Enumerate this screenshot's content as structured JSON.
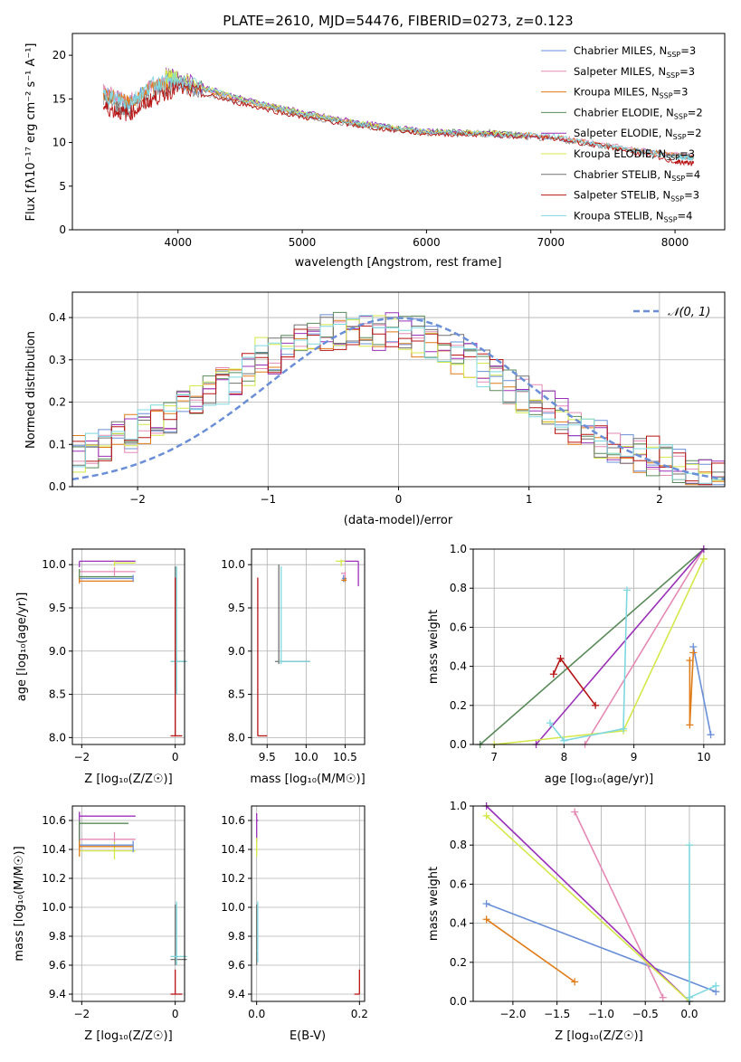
{
  "colors": {
    "Chabrier MILES": "#6a8fd8",
    "Salpeter MILES": "#e58ab5",
    "Kroupa MILES": "#e07b18",
    "Chabrier ELODIE": "#5a8a5a",
    "Salpeter ELODIE": "#9b30b8",
    "Kroupa ELODIE": "#d4e84a",
    "Chabrier STELIB": "#707070",
    "Salpeter STELIB": "#b81414",
    "Kroupa STELIB": "#7fd8e0"
  },
  "chart_data": [
    {
      "type": "line",
      "title": "PLATE=2610, MJD=54476, FIBERID=0273, z=0.123",
      "xlabel": "wavelength [Angstrom, rest frame]",
      "ylabel": "Flux [fλ10⁻¹⁷ erg cm⁻² s⁻¹ A⁻¹]",
      "xlim": [
        3150,
        8400
      ],
      "ylim": [
        0,
        22.5
      ],
      "xticks": [
        "4000",
        "5000",
        "6000",
        "7000",
        "8000"
      ],
      "yticks": [
        "0",
        "5",
        "10",
        "15",
        "20"
      ],
      "legend_position": "top-right",
      "series": [
        {
          "name": "Chabrier MILES, N_SSP=3",
          "x": [
            3400,
            3600,
            3800,
            4000,
            4500,
            5000,
            5500,
            6000,
            6500,
            7000,
            7500,
            8000,
            8150
          ],
          "values": [
            15.8,
            14.5,
            16.5,
            17.0,
            14.8,
            13.2,
            12.0,
            11.2,
            11.0,
            10.6,
            9.5,
            8.5,
            8.3
          ]
        },
        {
          "name": "Salpeter MILES, N_SSP=3",
          "x": [
            3400,
            3600,
            3800,
            4000,
            4500,
            5000,
            5500,
            6000,
            6500,
            7000,
            7500,
            8000,
            8150
          ],
          "values": [
            15.9,
            14.6,
            16.6,
            17.1,
            14.9,
            13.3,
            12.1,
            11.2,
            11.0,
            10.7,
            9.6,
            8.6,
            8.4
          ]
        },
        {
          "name": "Kroupa MILES, N_SSP=3",
          "x": [
            3400,
            3600,
            3800,
            4000,
            4500,
            5000,
            5500,
            6000,
            6500,
            7000,
            7500,
            8000,
            8150
          ],
          "values": [
            15.7,
            14.5,
            16.4,
            17.0,
            14.8,
            13.2,
            12.0,
            11.1,
            11.1,
            10.7,
            9.5,
            8.5,
            8.3
          ]
        },
        {
          "name": "Chabrier ELODIE, N_SSP=2",
          "x": [
            3900,
            4000,
            4500,
            5000,
            5500,
            6000,
            6500,
            6800
          ],
          "values": [
            17.5,
            17.2,
            15.0,
            13.4,
            12.1,
            11.3,
            11.2,
            10.9
          ]
        },
        {
          "name": "Salpeter ELODIE, N_SSP=2",
          "x": [
            3900,
            4000,
            4500,
            5000,
            5500,
            6000,
            6500,
            6800
          ],
          "values": [
            17.8,
            17.4,
            15.1,
            13.5,
            12.2,
            11.3,
            11.1,
            10.8
          ]
        },
        {
          "name": "Kroupa ELODIE, N_SSP=3",
          "x": [
            3900,
            4000,
            4500,
            5000,
            5500,
            6000,
            6500,
            6800
          ],
          "values": [
            17.6,
            17.3,
            15.0,
            13.4,
            12.1,
            11.2,
            11.1,
            10.8
          ]
        },
        {
          "name": "Chabrier STELIB, N_SSP=4",
          "x": [
            3400,
            3600,
            3800,
            4000,
            4500,
            5000,
            5500,
            6000,
            6500,
            7000,
            7500,
            8000,
            8150
          ],
          "values": [
            14.8,
            13.5,
            15.5,
            16.5,
            14.5,
            13.0,
            11.8,
            11.0,
            10.8,
            10.4,
            9.4,
            8.6,
            8.4
          ]
        },
        {
          "name": "Salpeter STELIB, N_SSP=3",
          "x": [
            3400,
            3600,
            3800,
            4000,
            4500,
            5000,
            5500,
            6000,
            6500,
            7000,
            7500,
            8000,
            8150
          ],
          "values": [
            14.0,
            13.2,
            15.0,
            16.2,
            14.5,
            12.9,
            11.8,
            11.0,
            10.9,
            10.5,
            9.4,
            7.8,
            7.6
          ]
        },
        {
          "name": "Kroupa STELIB, N_SSP=4",
          "x": [
            3400,
            3600,
            3800,
            4000,
            4500,
            5000,
            5500,
            6000,
            6500,
            7000,
            7500,
            8000,
            8150
          ],
          "values": [
            15.5,
            14.5,
            16.7,
            17.2,
            15.0,
            13.3,
            12.0,
            11.2,
            11.0,
            10.8,
            9.5,
            8.4,
            8.2
          ]
        }
      ]
    },
    {
      "type": "line",
      "xlabel": "(data-model)/error",
      "ylabel": "Normed distribution",
      "xlim": [
        -2.5,
        2.5
      ],
      "ylim": [
        0,
        0.46
      ],
      "xticks": [
        "−2",
        "−1",
        "0",
        "1",
        "2"
      ],
      "yticks": [
        "0.0",
        "0.1",
        "0.2",
        "0.3",
        "0.4"
      ],
      "legend_position": "top-right",
      "series": [
        {
          "name": "𝒩(0, 1)",
          "x": [
            -2.5,
            -2.0,
            -1.5,
            -1.0,
            -0.5,
            0.0,
            0.5,
            1.0,
            1.5,
            2.0,
            2.5
          ],
          "values": [
            0.018,
            0.054,
            0.13,
            0.242,
            0.352,
            0.399,
            0.352,
            0.242,
            0.13,
            0.054,
            0.018
          ]
        },
        {
          "x": [
            -2.5,
            -2.0,
            -1.5,
            -1.0,
            -0.5,
            0.0,
            0.5,
            1.0,
            1.5,
            2.0,
            2.5
          ],
          "values": [
            0.07,
            0.13,
            0.21,
            0.31,
            0.37,
            0.38,
            0.31,
            0.21,
            0.12,
            0.06,
            0.03
          ]
        },
        {
          "x": [
            -2.5,
            -2.0,
            -1.5,
            -1.0,
            -0.5,
            0.0,
            0.5,
            1.0,
            1.5,
            2.0,
            2.5
          ],
          "values": [
            0.08,
            0.12,
            0.22,
            0.3,
            0.36,
            0.37,
            0.31,
            0.21,
            0.12,
            0.07,
            0.03
          ]
        },
        {
          "x": [
            -2.5,
            -2.0,
            -1.5,
            -1.0,
            -0.5,
            0.0,
            0.5,
            1.0,
            1.5,
            2.0,
            2.5
          ],
          "values": [
            0.07,
            0.14,
            0.2,
            0.32,
            0.37,
            0.36,
            0.3,
            0.2,
            0.11,
            0.06,
            0.02
          ]
        }
      ]
    },
    {
      "type": "scatter",
      "xlabel": "Z [log₁₀(Z/Z☉)]",
      "ylabel": "age  [log₁₀(age/yr)]",
      "xlim": [
        -2.2,
        0.2
      ],
      "ylim": [
        7.92,
        10.18
      ],
      "xticks": [
        "−2",
        "0"
      ],
      "yticks": [
        "8.0",
        "8.5",
        "9.0",
        "9.5",
        "10.0"
      ]
    },
    {
      "type": "scatter",
      "xlabel": "mass [log₁₀(M/M☉)]",
      "ylabel": "",
      "xlim": [
        9.3,
        10.75
      ],
      "ylim": [
        7.92,
        10.18
      ],
      "xticks": [
        "9.5",
        "10.0",
        "10.5"
      ],
      "yticks": [
        "8.0",
        "8.5",
        "9.0",
        "9.5",
        "10.0"
      ]
    },
    {
      "type": "line",
      "xlabel": "age  [log₁₀(age/yr)]",
      "ylabel": "mass weight",
      "xlim": [
        6.7,
        10.3
      ],
      "ylim": [
        0,
        1.0
      ],
      "xticks": [
        "7",
        "8",
        "9",
        "10"
      ],
      "yticks": [
        "0.0",
        "0.2",
        "0.4",
        "0.6",
        "0.8",
        "1.0"
      ],
      "series": [
        {
          "x": [
            9.85,
            10.1
          ],
          "values": [
            0.5,
            0.05
          ]
        },
        {
          "x": [
            8.3,
            10.0
          ],
          "values": [
            0.0,
            1.0
          ]
        },
        {
          "x": [
            9.8,
            9.8,
            9.85
          ],
          "values": [
            0.43,
            0.1,
            0.47
          ]
        },
        {
          "x": [
            6.8,
            10.0
          ],
          "values": [
            0.0,
            1.0
          ]
        },
        {
          "x": [
            7.6,
            10.0
          ],
          "values": [
            0.0,
            1.0
          ]
        },
        {
          "x": [
            7.0,
            8.85,
            10.0
          ],
          "values": [
            0.0,
            0.07,
            0.95
          ]
        },
        {
          "x": [
            7.85,
            7.95,
            8.45
          ],
          "values": [
            0.36,
            0.44,
            0.2
          ]
        },
        {
          "x": [
            7.8,
            8.0,
            8.85,
            8.9
          ],
          "values": [
            0.11,
            0.02,
            0.08,
            0.79
          ]
        }
      ]
    },
    {
      "type": "scatter",
      "xlabel": "Z [log₁₀(Z/Z☉)]",
      "ylabel": "mass [log₁₀(M/M☉)]",
      "xlim": [
        -2.2,
        0.2
      ],
      "ylim": [
        9.35,
        10.7
      ],
      "xticks": [
        "−2",
        "0"
      ],
      "yticks": [
        "9.4",
        "9.6",
        "9.8",
        "10.0",
        "10.2",
        "10.4",
        "10.6"
      ]
    },
    {
      "type": "scatter",
      "xlabel": "E(B-V)",
      "ylabel": "",
      "xlim": [
        -0.01,
        0.21
      ],
      "ylim": [
        9.35,
        10.7
      ],
      "xticks": [
        "0.0",
        "0.2"
      ],
      "yticks": [
        "9.4",
        "9.6",
        "9.8",
        "10.0",
        "10.2",
        "10.4",
        "10.6"
      ]
    },
    {
      "type": "line",
      "xlabel": "Z [log₁₀(Z/Z☉)]",
      "ylabel": "mass weight",
      "xlim": [
        -2.45,
        0.4
      ],
      "ylim": [
        0,
        1.0
      ],
      "xticks": [
        "−2.0",
        "−1.5",
        "−1.0",
        "−0.5",
        "0.0"
      ],
      "yticks": [
        "0.0",
        "0.2",
        "0.4",
        "0.6",
        "0.8",
        "1.0"
      ],
      "series": [
        {
          "x": [
            -2.3,
            0.3
          ],
          "values": [
            0.5,
            0.05
          ]
        },
        {
          "x": [
            -1.3,
            -0.3
          ],
          "values": [
            0.97,
            0.02
          ]
        },
        {
          "x": [
            -2.3,
            -1.3
          ],
          "values": [
            0.42,
            0.1
          ]
        },
        {
          "x": [
            -2.3,
            0.0
          ],
          "values": [
            1.0,
            0.0
          ]
        },
        {
          "x": [
            -2.3,
            0.0
          ],
          "values": [
            0.95,
            0.0
          ]
        },
        {
          "x": [
            0.0,
            0.0
          ],
          "values": [
            0.0,
            0.8
          ]
        },
        {
          "x": [
            0.0,
            0.3
          ],
          "values": [
            0.02,
            0.08
          ]
        }
      ]
    }
  ]
}
